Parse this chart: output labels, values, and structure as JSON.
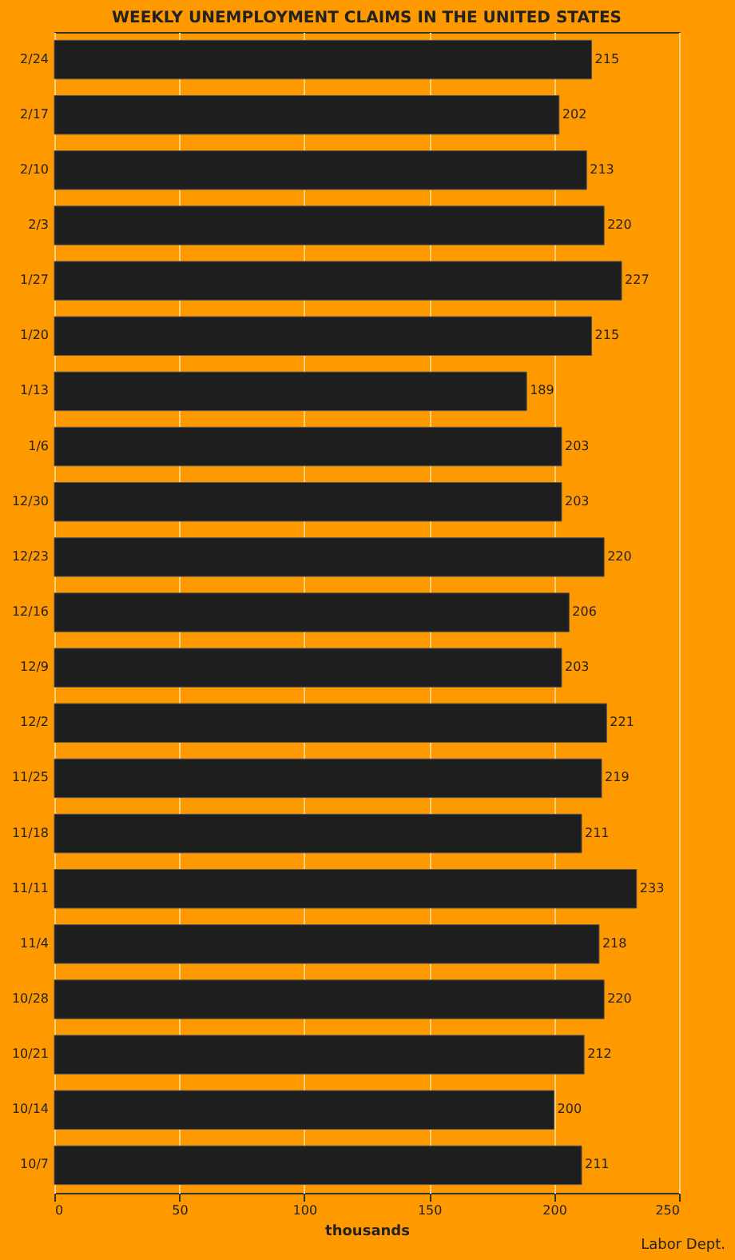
{
  "chart_data": {
    "type": "bar",
    "orientation": "horizontal",
    "title": "WEEKLY UNEMPLOYMENT CLAIMS IN THE UNITED STATES",
    "xlabel": "thousands",
    "categories": [
      "2/24",
      "2/17",
      "2/10",
      "2/3",
      "1/27",
      "1/20",
      "1/13",
      "1/6",
      "12/30",
      "12/23",
      "12/16",
      "12/9",
      "12/2",
      "11/25",
      "11/18",
      "11/11",
      "11/4",
      "10/28",
      "10/21",
      "10/14",
      "10/7"
    ],
    "values": [
      215,
      202,
      213,
      220,
      227,
      215,
      189,
      203,
      203,
      220,
      206,
      203,
      221,
      219,
      211,
      233,
      218,
      220,
      212,
      200,
      211
    ],
    "color": "#1e1e1e",
    "xlim": [
      0,
      250
    ],
    "xticks": [
      0,
      50,
      100,
      150,
      200,
      250
    ],
    "grid": "x",
    "data_labels": true,
    "annotations": [
      "Labor Dept."
    ]
  }
}
